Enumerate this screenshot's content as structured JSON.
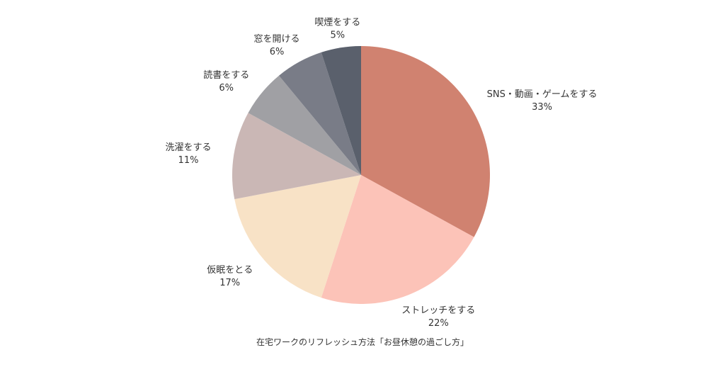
{
  "chart_data": {
    "type": "pie",
    "title": "",
    "caption": "在宅ワークのリフレッシュ方法「お昼休憩の過ごし方」",
    "slices": [
      {
        "label": "SNS・動画・ゲームをする",
        "value": 33,
        "display": "33%",
        "color": "#D08270"
      },
      {
        "label": "ストレッチをする",
        "value": 22,
        "display": "22%",
        "color": "#FCC3B8"
      },
      {
        "label": "仮眠をとる",
        "value": 17,
        "display": "17%",
        "color": "#F8E2C6"
      },
      {
        "label": "洗濯をする",
        "value": 11,
        "display": "11%",
        "color": "#CAB7B5"
      },
      {
        "label": "読書をする",
        "value": 6,
        "display": "6%",
        "color": "#A0A0A4"
      },
      {
        "label": "窓を開ける",
        "value": 6,
        "display": "6%",
        "color": "#797C87"
      },
      {
        "label": "喫煙をする",
        "value": 5,
        "display": "5%",
        "color": "#5A606C"
      }
    ],
    "start_angle_deg": 0,
    "direction": "clockwise",
    "legend": "none"
  }
}
